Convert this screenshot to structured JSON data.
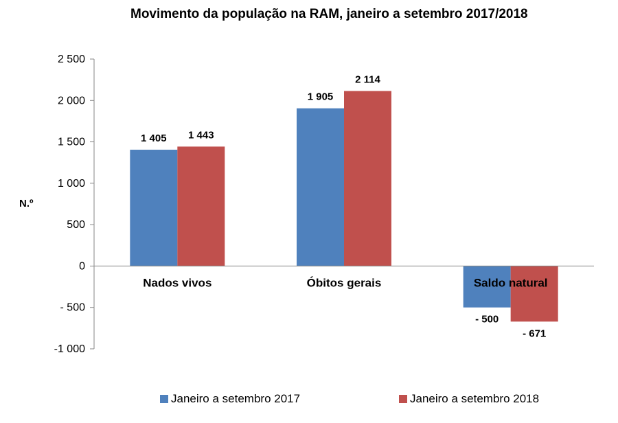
{
  "chart_data": {
    "type": "bar",
    "title": "Movimento da população na RAM, janeiro a setembro 2017/2018",
    "ylabel": "N.º",
    "xlabel": "",
    "categories": [
      "Nados vivos",
      "Óbitos gerais",
      "Saldo natural"
    ],
    "series": [
      {
        "name": "Janeiro a setembro 2017",
        "color": "#4f81bd",
        "values": [
          1405,
          1905,
          -500
        ],
        "labels": [
          "1 405",
          "1 905",
          "- 500"
        ]
      },
      {
        "name": "Janeiro a setembro 2018",
        "color": "#c0504d",
        "values": [
          1443,
          2114,
          -671
        ],
        "labels": [
          "1 443",
          "2 114",
          "- 671"
        ]
      }
    ],
    "ylim": [
      -1000,
      2500
    ],
    "yticks": [
      2500,
      2000,
      1500,
      1000,
      500,
      0,
      -500,
      -1000
    ],
    "ytick_labels": [
      "2 500",
      "2 000",
      "1 500",
      "1 000",
      "500",
      "0",
      "- 500",
      "-1 000"
    ],
    "grid": false,
    "legend_position": "bottom"
  }
}
